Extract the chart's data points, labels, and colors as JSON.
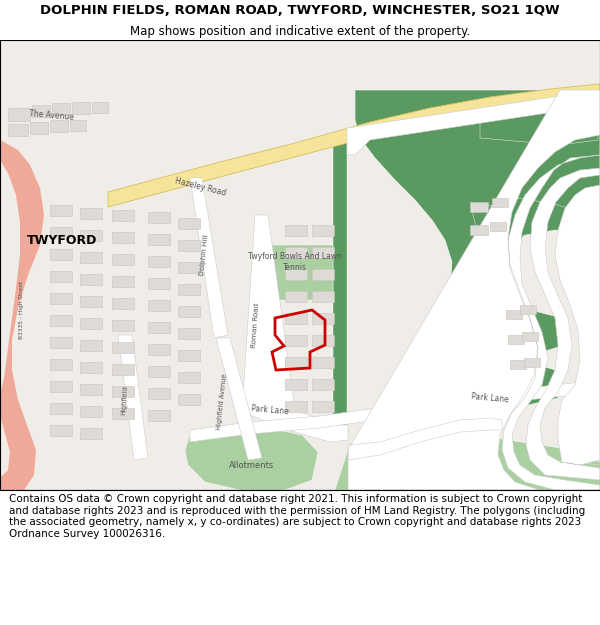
{
  "title": "DOLPHIN FIELDS, ROMAN ROAD, TWYFORD, WINCHESTER, SO21 1QW",
  "subtitle": "Map shows position and indicative extent of the property.",
  "footer": "Contains OS data © Crown copyright and database right 2021. This information is subject to Crown copyright and database rights 2023 and is reproduced with the permission of HM Land Registry. The polygons (including the associated geometry, namely x, y co-ordinates) are subject to Crown copyright and database rights 2023 Ordnance Survey 100026316.",
  "map_bg": "#f0ede8",
  "road_yellow_fill": "#f5e49a",
  "road_yellow_edge": "#d4c060",
  "green_dark": "#5a9a60",
  "green_light": "#aacfa0",
  "building_fill": "#dedad5",
  "building_edge": "#c8c4be",
  "salmon": "#f0a898",
  "red_boundary": "#cc0000",
  "label_color": "#555555",
  "title_size": 9.5,
  "subtitle_size": 8.5,
  "footer_size": 7.5
}
